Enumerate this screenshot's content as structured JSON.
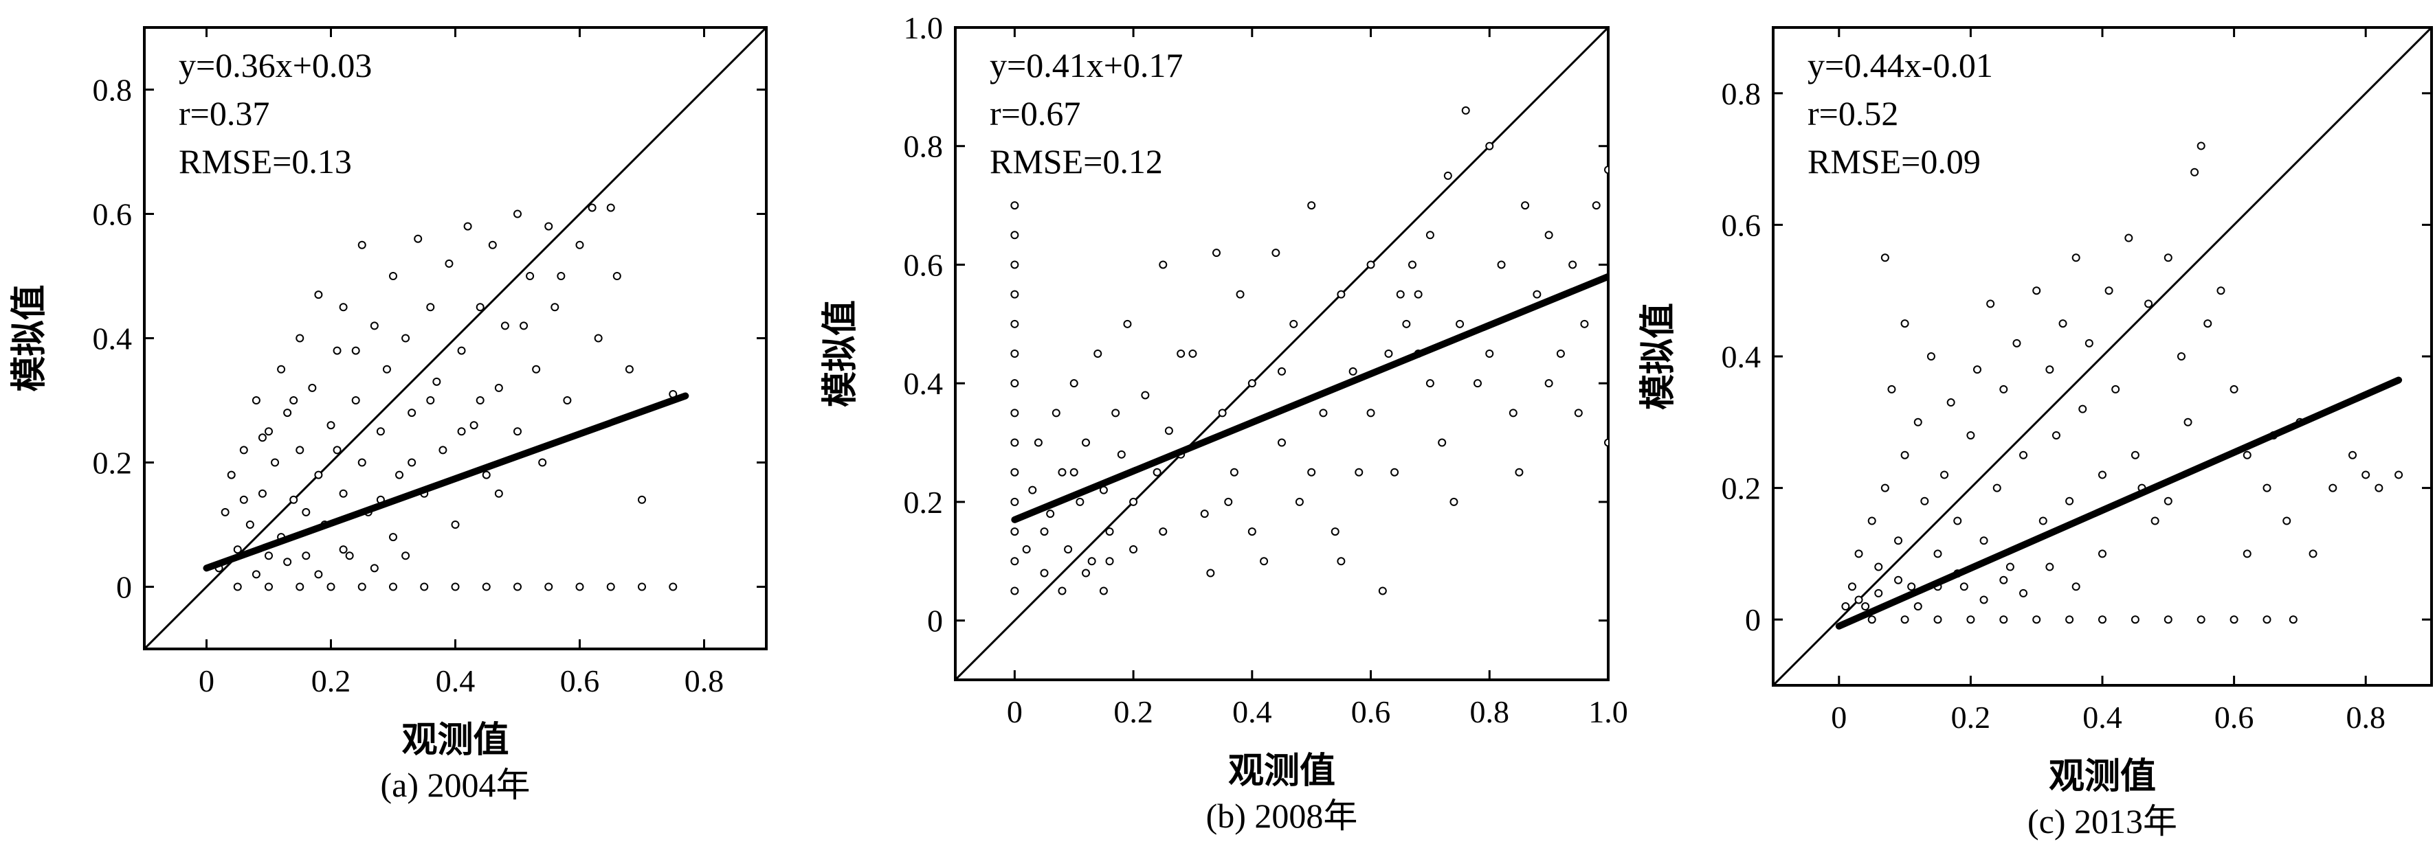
{
  "chart_data": [
    {
      "type": "scatter",
      "caption": "(a) 2004年",
      "xlabel": "观测值",
      "ylabel": "模拟值",
      "xlim": [
        -0.1,
        0.9
      ],
      "ylim": [
        -0.1,
        0.9
      ],
      "xticks": [
        "0",
        "0.2",
        "0.4",
        "0.6",
        "0.8"
      ],
      "yticks": [
        "0",
        "0.2",
        "0.4",
        "0.6",
        "0.8"
      ],
      "xtick_values": [
        0,
        0.2,
        0.4,
        0.6,
        0.8
      ],
      "ytick_values": [
        0,
        0.2,
        0.4,
        0.6,
        0.8
      ],
      "stats": {
        "equation": "y=0.36x+0.03",
        "r": "r=0.37",
        "rmse": "RMSE=0.13"
      },
      "regression": {
        "slope": 0.36,
        "intercept": 0.03,
        "x_range": [
          0,
          0.77
        ]
      },
      "identity_line": true,
      "points": [
        [
          0.02,
          0.03
        ],
        [
          0.03,
          0.12
        ],
        [
          0.04,
          0.18
        ],
        [
          0.05,
          0.06
        ],
        [
          0.06,
          0.22
        ],
        [
          0.07,
          0.1
        ],
        [
          0.08,
          0.3
        ],
        [
          0.09,
          0.15
        ],
        [
          0.1,
          0.05
        ],
        [
          0.1,
          0.25
        ],
        [
          0.11,
          0.2
        ],
        [
          0.12,
          0.35
        ],
        [
          0.12,
          0.08
        ],
        [
          0.13,
          0.28
        ],
        [
          0.14,
          0.14
        ],
        [
          0.15,
          0.4
        ],
        [
          0.15,
          0.22
        ],
        [
          0.16,
          0.05
        ],
        [
          0.17,
          0.32
        ],
        [
          0.18,
          0.18
        ],
        [
          0.18,
          0.47
        ],
        [
          0.19,
          0.1
        ],
        [
          0.2,
          0.26
        ],
        [
          0.21,
          0.38
        ],
        [
          0.22,
          0.15
        ],
        [
          0.22,
          0.45
        ],
        [
          0.23,
          0.05
        ],
        [
          0.24,
          0.3
        ],
        [
          0.25,
          0.2
        ],
        [
          0.25,
          0.55
        ],
        [
          0.26,
          0.12
        ],
        [
          0.27,
          0.42
        ],
        [
          0.28,
          0.25
        ],
        [
          0.29,
          0.35
        ],
        [
          0.3,
          0.08
        ],
        [
          0.3,
          0.5
        ],
        [
          0.31,
          0.18
        ],
        [
          0.32,
          0.4
        ],
        [
          0.33,
          0.28
        ],
        [
          0.34,
          0.56
        ],
        [
          0.35,
          0.15
        ],
        [
          0.36,
          0.45
        ],
        [
          0.37,
          0.33
        ],
        [
          0.38,
          0.22
        ],
        [
          0.39,
          0.52
        ],
        [
          0.4,
          0.1
        ],
        [
          0.41,
          0.38
        ],
        [
          0.42,
          0.58
        ],
        [
          0.43,
          0.26
        ],
        [
          0.44,
          0.45
        ],
        [
          0.45,
          0.18
        ],
        [
          0.46,
          0.55
        ],
        [
          0.47,
          0.32
        ],
        [
          0.48,
          0.42
        ],
        [
          0.5,
          0.6
        ],
        [
          0.5,
          0.25
        ],
        [
          0.52,
          0.5
        ],
        [
          0.53,
          0.35
        ],
        [
          0.55,
          0.58
        ],
        [
          0.56,
          0.45
        ],
        [
          0.58,
          0.3
        ],
        [
          0.6,
          0.55
        ],
        [
          0.62,
          0.61
        ],
        [
          0.63,
          0.4
        ],
        [
          0.65,
          0.61
        ],
        [
          0.66,
          0.5
        ],
        [
          0.68,
          0.35
        ],
        [
          0.7,
          0.14
        ],
        [
          0.75,
          0.31
        ],
        [
          0.05,
          0.0
        ],
        [
          0.1,
          0.0
        ],
        [
          0.15,
          0.0
        ],
        [
          0.2,
          0.0
        ],
        [
          0.25,
          0.0
        ],
        [
          0.3,
          0.0
        ],
        [
          0.35,
          0.0
        ],
        [
          0.4,
          0.0
        ],
        [
          0.45,
          0.0
        ],
        [
          0.5,
          0.0
        ],
        [
          0.55,
          0.0
        ],
        [
          0.6,
          0.0
        ],
        [
          0.65,
          0.0
        ],
        [
          0.7,
          0.0
        ],
        [
          0.75,
          0.0
        ],
        [
          0.08,
          0.02
        ],
        [
          0.13,
          0.04
        ],
        [
          0.18,
          0.02
        ],
        [
          0.22,
          0.06
        ],
        [
          0.27,
          0.03
        ],
        [
          0.32,
          0.05
        ],
        [
          0.06,
          0.14
        ],
        [
          0.09,
          0.24
        ],
        [
          0.14,
          0.3
        ],
        [
          0.16,
          0.12
        ],
        [
          0.21,
          0.22
        ],
        [
          0.24,
          0.38
        ],
        [
          0.28,
          0.14
        ],
        [
          0.33,
          0.2
        ],
        [
          0.36,
          0.3
        ],
        [
          0.41,
          0.25
        ],
        [
          0.44,
          0.3
        ],
        [
          0.47,
          0.15
        ],
        [
          0.51,
          0.42
        ],
        [
          0.54,
          0.2
        ],
        [
          0.57,
          0.5
        ]
      ]
    },
    {
      "type": "scatter",
      "caption": "(b) 2008年",
      "xlabel": "观测值",
      "ylabel": "模拟值",
      "xlim": [
        -0.1,
        1.0
      ],
      "ylim": [
        -0.1,
        1.0
      ],
      "xticks": [
        "0",
        "0.2",
        "0.4",
        "0.6",
        "0.8",
        "1.0"
      ],
      "yticks": [
        "0",
        "0.2",
        "0.4",
        "0.6",
        "0.8",
        "1.0"
      ],
      "xtick_values": [
        0,
        0.2,
        0.4,
        0.6,
        0.8,
        1.0
      ],
      "ytick_values": [
        0,
        0.2,
        0.4,
        0.6,
        0.8,
        1.0
      ],
      "stats": {
        "equation": "y=0.41x+0.17",
        "r": "r=0.67",
        "rmse": "RMSE=0.12"
      },
      "regression": {
        "slope": 0.41,
        "intercept": 0.17,
        "x_range": [
          0,
          1.0
        ]
      },
      "identity_line": true,
      "points": [
        [
          0,
          0.05
        ],
        [
          0,
          0.1
        ],
        [
          0,
          0.15
        ],
        [
          0,
          0.2
        ],
        [
          0,
          0.25
        ],
        [
          0,
          0.3
        ],
        [
          0,
          0.35
        ],
        [
          0,
          0.4
        ],
        [
          0,
          0.45
        ],
        [
          0,
          0.5
        ],
        [
          0,
          0.55
        ],
        [
          0,
          0.6
        ],
        [
          0,
          0.65
        ],
        [
          0,
          0.7
        ],
        [
          0.02,
          0.12
        ],
        [
          0.03,
          0.22
        ],
        [
          0.04,
          0.3
        ],
        [
          0.05,
          0.08
        ],
        [
          0.06,
          0.18
        ],
        [
          0.07,
          0.35
        ],
        [
          0.08,
          0.25
        ],
        [
          0.09,
          0.12
        ],
        [
          0.1,
          0.4
        ],
        [
          0.11,
          0.2
        ],
        [
          0.12,
          0.3
        ],
        [
          0.13,
          0.1
        ],
        [
          0.14,
          0.45
        ],
        [
          0.15,
          0.22
        ],
        [
          0.16,
          0.15
        ],
        [
          0.17,
          0.35
        ],
        [
          0.18,
          0.28
        ],
        [
          0.19,
          0.5
        ],
        [
          0.2,
          0.2
        ],
        [
          0.22,
          0.38
        ],
        [
          0.24,
          0.25
        ],
        [
          0.25,
          0.6
        ],
        [
          0.26,
          0.32
        ],
        [
          0.28,
          0.28
        ],
        [
          0.3,
          0.45
        ],
        [
          0.32,
          0.18
        ],
        [
          0.34,
          0.62
        ],
        [
          0.35,
          0.35
        ],
        [
          0.37,
          0.25
        ],
        [
          0.38,
          0.55
        ],
        [
          0.4,
          0.4
        ],
        [
          0.42,
          0.1
        ],
        [
          0.44,
          0.62
        ],
        [
          0.45,
          0.3
        ],
        [
          0.47,
          0.5
        ],
        [
          0.48,
          0.2
        ],
        [
          0.5,
          0.7
        ],
        [
          0.52,
          0.35
        ],
        [
          0.54,
          0.15
        ],
        [
          0.55,
          0.55
        ],
        [
          0.57,
          0.42
        ],
        [
          0.58,
          0.25
        ],
        [
          0.6,
          0.6
        ],
        [
          0.62,
          0.05
        ],
        [
          0.63,
          0.45
        ],
        [
          0.65,
          0.55
        ],
        [
          0.66,
          0.5
        ],
        [
          0.67,
          0.6
        ],
        [
          0.68,
          0.45
        ],
        [
          0.68,
          0.55
        ],
        [
          0.7,
          0.65
        ],
        [
          0.72,
          0.3
        ],
        [
          0.73,
          0.75
        ],
        [
          0.75,
          0.5
        ],
        [
          0.76,
          0.86
        ],
        [
          0.78,
          0.4
        ],
        [
          0.8,
          0.8
        ],
        [
          0.82,
          0.6
        ],
        [
          0.84,
          0.35
        ],
        [
          0.86,
          0.7
        ],
        [
          0.88,
          0.55
        ],
        [
          0.9,
          0.65
        ],
        [
          0.92,
          0.45
        ],
        [
          0.94,
          0.6
        ],
        [
          0.96,
          0.5
        ],
        [
          0.98,
          0.7
        ],
        [
          1.0,
          0.76
        ],
        [
          1.0,
          0.3
        ],
        [
          0.15,
          0.05
        ],
        [
          0.16,
          0.1
        ],
        [
          0.05,
          0.15
        ],
        [
          0.08,
          0.05
        ],
        [
          0.1,
          0.25
        ],
        [
          0.12,
          0.08
        ],
        [
          0.2,
          0.12
        ],
        [
          0.25,
          0.15
        ],
        [
          0.28,
          0.45
        ],
        [
          0.33,
          0.08
        ],
        [
          0.36,
          0.2
        ],
        [
          0.4,
          0.15
        ],
        [
          0.45,
          0.42
        ],
        [
          0.5,
          0.25
        ],
        [
          0.55,
          0.1
        ],
        [
          0.6,
          0.35
        ],
        [
          0.64,
          0.25
        ],
        [
          0.7,
          0.4
        ],
        [
          0.74,
          0.2
        ],
        [
          0.8,
          0.45
        ],
        [
          0.85,
          0.25
        ],
        [
          0.9,
          0.4
        ],
        [
          0.95,
          0.35
        ]
      ]
    },
    {
      "type": "scatter",
      "caption": "(c) 2013年",
      "xlabel": "观测值",
      "ylabel": "模拟值",
      "xlim": [
        -0.1,
        0.9
      ],
      "ylim": [
        -0.1,
        0.9
      ],
      "xticks": [
        "0",
        "0.2",
        "0.4",
        "0.6",
        "0.8"
      ],
      "yticks": [
        "0",
        "0.2",
        "0.4",
        "0.6",
        "0.8"
      ],
      "xtick_values": [
        0,
        0.2,
        0.4,
        0.6,
        0.8
      ],
      "ytick_values": [
        0,
        0.2,
        0.4,
        0.6,
        0.8
      ],
      "stats": {
        "equation": "y=0.44x-0.01",
        "r": "r=0.52",
        "rmse": "RMSE=0.09"
      },
      "regression": {
        "slope": 0.44,
        "intercept": -0.01,
        "x_range": [
          0,
          0.85
        ]
      },
      "identity_line": true,
      "points": [
        [
          0.01,
          0.02
        ],
        [
          0.02,
          0.05
        ],
        [
          0.03,
          0.1
        ],
        [
          0.04,
          0.02
        ],
        [
          0.05,
          0.15
        ],
        [
          0.06,
          0.08
        ],
        [
          0.07,
          0.2
        ],
        [
          0.07,
          0.55
        ],
        [
          0.08,
          0.35
        ],
        [
          0.09,
          0.12
        ],
        [
          0.1,
          0.25
        ],
        [
          0.1,
          0.45
        ],
        [
          0.11,
          0.05
        ],
        [
          0.12,
          0.3
        ],
        [
          0.13,
          0.18
        ],
        [
          0.14,
          0.4
        ],
        [
          0.15,
          0.1
        ],
        [
          0.16,
          0.22
        ],
        [
          0.17,
          0.33
        ],
        [
          0.18,
          0.15
        ],
        [
          0.19,
          0.05
        ],
        [
          0.2,
          0.28
        ],
        [
          0.21,
          0.38
        ],
        [
          0.22,
          0.12
        ],
        [
          0.23,
          0.48
        ],
        [
          0.24,
          0.2
        ],
        [
          0.25,
          0.35
        ],
        [
          0.26,
          0.08
        ],
        [
          0.27,
          0.42
        ],
        [
          0.28,
          0.25
        ],
        [
          0.3,
          0.5
        ],
        [
          0.31,
          0.15
        ],
        [
          0.32,
          0.38
        ],
        [
          0.33,
          0.28
        ],
        [
          0.34,
          0.45
        ],
        [
          0.35,
          0.18
        ],
        [
          0.36,
          0.55
        ],
        [
          0.37,
          0.32
        ],
        [
          0.38,
          0.42
        ],
        [
          0.4,
          0.22
        ],
        [
          0.41,
          0.5
        ],
        [
          0.42,
          0.35
        ],
        [
          0.44,
          0.58
        ],
        [
          0.45,
          0.25
        ],
        [
          0.47,
          0.48
        ],
        [
          0.48,
          0.15
        ],
        [
          0.5,
          0.55
        ],
        [
          0.52,
          0.4
        ],
        [
          0.53,
          0.3
        ],
        [
          0.54,
          0.68
        ],
        [
          0.55,
          0.72
        ],
        [
          0.56,
          0.45
        ],
        [
          0.58,
          0.5
        ],
        [
          0.6,
          0.35
        ],
        [
          0.62,
          0.25
        ],
        [
          0.65,
          0.2
        ],
        [
          0.68,
          0.15
        ],
        [
          0.7,
          0.3
        ],
        [
          0.72,
          0.1
        ],
        [
          0.75,
          0.2
        ],
        [
          0.78,
          0.25
        ],
        [
          0.8,
          0.22
        ],
        [
          0.82,
          0.2
        ],
        [
          0.85,
          0.22
        ],
        [
          0.05,
          0.0
        ],
        [
          0.1,
          0.0
        ],
        [
          0.15,
          0.0
        ],
        [
          0.2,
          0.0
        ],
        [
          0.25,
          0.0
        ],
        [
          0.3,
          0.0
        ],
        [
          0.35,
          0.0
        ],
        [
          0.4,
          0.0
        ],
        [
          0.45,
          0.0
        ],
        [
          0.5,
          0.0
        ],
        [
          0.55,
          0.0
        ],
        [
          0.6,
          0.0
        ],
        [
          0.65,
          0.0
        ],
        [
          0.69,
          0.0
        ],
        [
          0.03,
          0.03
        ],
        [
          0.06,
          0.04
        ],
        [
          0.09,
          0.06
        ],
        [
          0.12,
          0.02
        ],
        [
          0.15,
          0.05
        ],
        [
          0.18,
          0.07
        ],
        [
          0.22,
          0.03
        ],
        [
          0.25,
          0.06
        ],
        [
          0.28,
          0.04
        ],
        [
          0.32,
          0.08
        ],
        [
          0.36,
          0.05
        ],
        [
          0.4,
          0.1
        ],
        [
          0.46,
          0.2
        ],
        [
          0.5,
          0.18
        ],
        [
          0.62,
          0.1
        ],
        [
          0.66,
          0.28
        ]
      ]
    }
  ]
}
